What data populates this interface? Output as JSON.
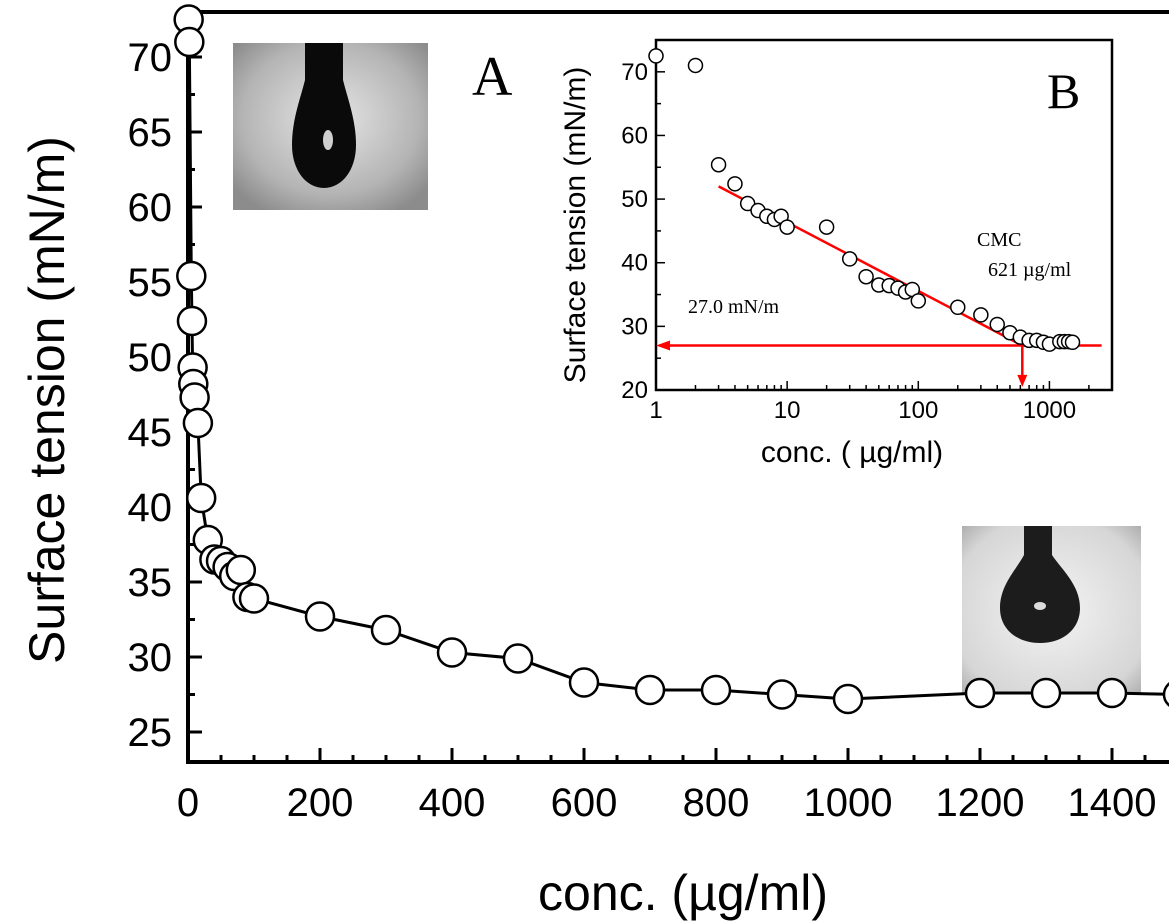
{
  "chart_data": [
    {
      "type": "line",
      "panel_label": "A",
      "xlabel": "conc. (µg/ml)",
      "ylabel": "Surface tension (mN/m)",
      "xlim": [
        0,
        1500
      ],
      "ylim": [
        23,
        73
      ],
      "xticks": [
        "0",
        "200",
        "400",
        "600",
        "800",
        "1000",
        "1200",
        "1400"
      ],
      "xtick_values": [
        0,
        200,
        400,
        600,
        800,
        1000,
        1200,
        1400
      ],
      "yticks": [
        "25",
        "30",
        "35",
        "40",
        "45",
        "50",
        "55",
        "60",
        "65",
        "70"
      ],
      "ytick_values": [
        25,
        30,
        35,
        40,
        45,
        50,
        55,
        60,
        65,
        70
      ],
      "series": [
        {
          "marker": "open-circle",
          "line": true,
          "x": [
            1,
            2,
            5,
            6,
            7,
            8,
            10,
            15,
            20,
            30,
            40,
            50,
            60,
            70,
            80,
            90,
            100,
            200,
            300,
            400,
            500,
            600,
            700,
            800,
            900,
            1000,
            1200,
            1300,
            1400,
            1500
          ],
          "y": [
            72.5,
            71.0,
            55.4,
            52.4,
            49.3,
            48.2,
            47.3,
            45.6,
            40.6,
            37.8,
            36.5,
            36.4,
            36.0,
            35.4,
            35.8,
            34.0,
            33.9,
            32.7,
            31.8,
            30.3,
            29.9,
            28.3,
            27.8,
            27.8,
            27.5,
            27.2,
            27.6,
            27.6,
            27.6,
            27.5
          ]
        }
      ]
    },
    {
      "type": "scatter",
      "panel_label": "B",
      "xlabel": "conc. ( µg/ml)",
      "ylabel": "Surface tension (mN/m)",
      "xscale": "log",
      "xlim": [
        1,
        3000
      ],
      "ylim": [
        20,
        75
      ],
      "xticks": [
        "1",
        "10",
        "100",
        "1000"
      ],
      "xtick_values": [
        1,
        10,
        100,
        1000
      ],
      "yticks": [
        "20",
        "30",
        "40",
        "50",
        "60",
        "70"
      ],
      "ytick_values": [
        20,
        30,
        40,
        50,
        60,
        70
      ],
      "series": [
        {
          "marker": "open-circle",
          "x": [
            1,
            2,
            3,
            4,
            5,
            6,
            7,
            8,
            9,
            10,
            20,
            30,
            40,
            50,
            60,
            70,
            80,
            90,
            100,
            200,
            300,
            400,
            500,
            600,
            700,
            800,
            900,
            1000,
            1200,
            1300,
            1400,
            1500
          ],
          "y": [
            72.5,
            71.0,
            55.4,
            52.4,
            49.3,
            48.2,
            47.3,
            46.8,
            47.3,
            45.6,
            45.6,
            40.6,
            37.8,
            36.5,
            36.4,
            36.0,
            35.4,
            35.8,
            34.0,
            33.0,
            31.8,
            30.3,
            29.0,
            28.3,
            27.8,
            27.8,
            27.5,
            27.2,
            27.6,
            27.6,
            27.6,
            27.5
          ]
        }
      ],
      "fit_line": {
        "x": [
          3,
          621
        ],
        "y": [
          52,
          27.0
        ],
        "color": "#ff0000"
      },
      "horizontal_line": {
        "y": 27.0,
        "x": [
          1,
          2500
        ],
        "color": "#ff0000"
      },
      "vertical_arrow": {
        "x": 621,
        "y": [
          27.0,
          20.5
        ],
        "color": "#ff0000"
      },
      "annotations": {
        "plateau": "27.0 mN/m",
        "cmc_title": "CMC",
        "cmc_value": "621 µg/ml"
      }
    }
  ]
}
